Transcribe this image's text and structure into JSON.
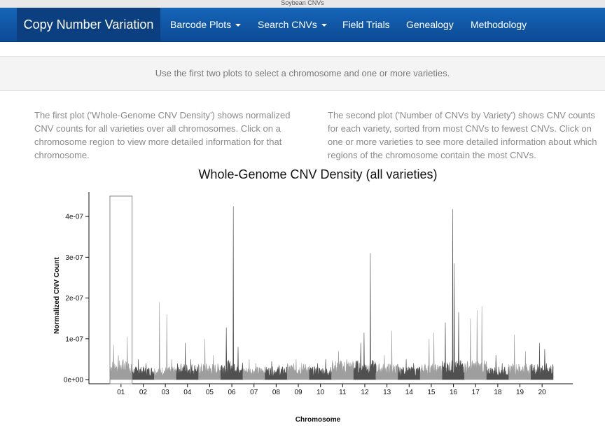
{
  "window": {
    "title": "Soybean CNVs"
  },
  "navbar": {
    "brand": "Copy Number Variation",
    "items": [
      {
        "label": "Barcode Plots",
        "dropdown": true
      },
      {
        "label": "Search CNVs",
        "dropdown": true
      },
      {
        "label": "Field Trials",
        "dropdown": false
      },
      {
        "label": "Genealogy",
        "dropdown": false
      },
      {
        "label": "Methodology",
        "dropdown": false
      }
    ]
  },
  "hint": "Use the first two plots to select a chromosome and one or more varieties.",
  "descriptions": {
    "left": "The first plot ('Whole-Genome CNV Density') shows normalized CNV counts for all varieties over all chromosomes. Click on a chromosome region to view more detailed information for that chromosome.",
    "right": "The second plot ('Number of CNVs by Variety') shows CNV counts for each variety, sorted from most CNVs to fewest CNVs. Click on one or more varieties to see more detailed information about which regions of the chromosome contain the most CNVs."
  },
  "colors": {
    "nav_bg": "#0c4a94",
    "brand_bg": "#0b3f7f",
    "chrom_light": "#9e9e9e",
    "chrom_dark": "#505050"
  },
  "chart_data": {
    "type": "area",
    "title": "Whole-Genome CNV Density (all varieties)",
    "xlabel": "Chromosome",
    "ylabel": "Normalized CNV Count",
    "ylim": [
      0,
      4.5e-07
    ],
    "y_ticks": [
      "0e+00",
      "1e-07",
      "2e-07",
      "3e-07",
      "4e-07"
    ],
    "y_tick_values": [
      0,
      1e-07,
      2e-07,
      3e-07,
      4e-07
    ],
    "selected_chromosome": "01",
    "chromosomes": [
      {
        "label": "01",
        "baseline": 3e-08,
        "peaks": [
          8.5e-08,
          6e-08,
          5e-08,
          1.05e-07
        ]
      },
      {
        "label": "02",
        "baseline": 2e-08,
        "peaks": [
          5e-08,
          4e-08
        ]
      },
      {
        "label": "03",
        "baseline": 2e-08,
        "peaks": [
          1.9e-07,
          1.6e-07,
          5e-08
        ]
      },
      {
        "label": "04",
        "baseline": 2.5e-08,
        "peaks": [
          9e-08,
          5e-08
        ]
      },
      {
        "label": "05",
        "baseline": 2.5e-08,
        "peaks": [
          1e-07,
          6e-08
        ]
      },
      {
        "label": "06",
        "baseline": 3e-08,
        "peaks": [
          1.28e-07,
          4.25e-07,
          8e-08
        ]
      },
      {
        "label": "07",
        "baseline": 2e-08,
        "peaks": [
          5e-08,
          4e-08
        ]
      },
      {
        "label": "08",
        "baseline": 2e-08,
        "peaks": [
          4.5e-08,
          3.5e-08
        ]
      },
      {
        "label": "09",
        "baseline": 2.5e-08,
        "peaks": [
          5e-08,
          4e-08
        ]
      },
      {
        "label": "10",
        "baseline": 2e-08,
        "peaks": [
          4e-08,
          5e-08
        ]
      },
      {
        "label": "11",
        "baseline": 3e-08,
        "peaks": [
          7e-08,
          5e-08
        ]
      },
      {
        "label": "12",
        "baseline": 3e-08,
        "peaks": [
          9e-08,
          1.15e-07,
          3.1e-07
        ]
      },
      {
        "label": "13",
        "baseline": 2.5e-08,
        "peaks": [
          6e-08,
          1.2e-07
        ]
      },
      {
        "label": "14",
        "baseline": 2e-08,
        "peaks": [
          5e-08,
          4e-08
        ]
      },
      {
        "label": "15",
        "baseline": 2.5e-08,
        "peaks": [
          1e-07,
          1.15e-07
        ]
      },
      {
        "label": "16",
        "baseline": 3e-08,
        "peaks": [
          1.4e-07,
          4.18e-07,
          2.85e-07,
          1.65e-07
        ]
      },
      {
        "label": "17",
        "baseline": 3e-08,
        "peaks": [
          1.5e-07,
          1.7e-07,
          1.8e-07
        ]
      },
      {
        "label": "18",
        "baseline": 2e-08,
        "peaks": [
          6e-08,
          4e-08
        ]
      },
      {
        "label": "19",
        "baseline": 2.5e-08,
        "peaks": [
          1.1e-07,
          7e-08
        ]
      },
      {
        "label": "20",
        "baseline": 2.5e-08,
        "peaks": [
          9e-08,
          7.5e-08
        ]
      }
    ]
  }
}
